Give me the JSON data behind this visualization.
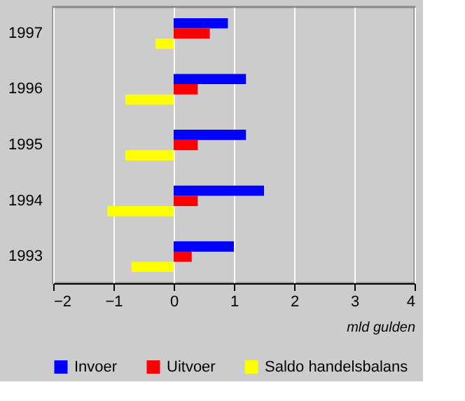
{
  "chart_data": {
    "type": "bar",
    "orientation": "horizontal",
    "xlabel": "mld gulden",
    "categories": [
      "1997",
      "1996",
      "1995",
      "1994",
      "1993"
    ],
    "series": [
      {
        "name": "Invoer",
        "color": "#0000ff",
        "values": [
          0.9,
          1.2,
          1.2,
          1.5,
          1.0
        ]
      },
      {
        "name": "Uitvoer",
        "color": "#ff0000",
        "values": [
          0.6,
          0.4,
          0.4,
          0.4,
          0.3
        ]
      },
      {
        "name": "Saldo handelsbalans",
        "color": "#ffff00",
        "values": [
          -0.3,
          -0.8,
          -0.8,
          -1.1,
          -0.7
        ]
      }
    ],
    "xlim": [
      -2,
      4
    ],
    "xticks": [
      -2,
      -1,
      0,
      1,
      2,
      3,
      4
    ],
    "grid": "x",
    "legend": "bottom"
  }
}
